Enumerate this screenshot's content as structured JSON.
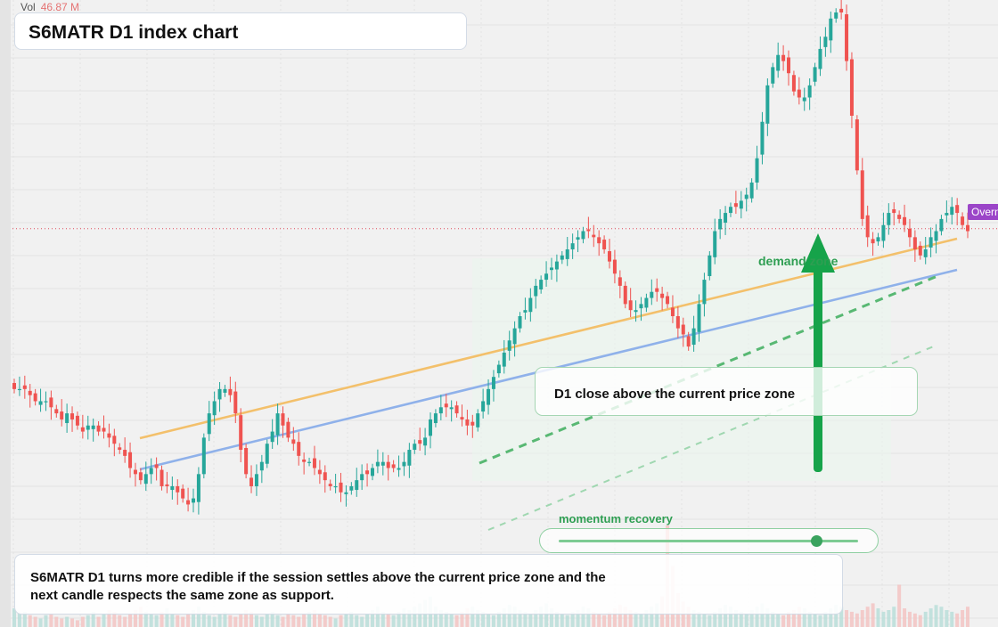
{
  "header": {
    "title": "S6MATR D1 index chart",
    "vol_label": "Vol",
    "vol_value": "46.87 M"
  },
  "annotations": {
    "callout": "D1 close above the current price zone",
    "demand_label": "demand zone",
    "momentum_label": "momentum recovery",
    "momentum_level": 0.86,
    "summary": "S6MATR D1 turns more credible if the session settles above the current price zone and the next candle respects the same zone as support.",
    "price_tag": "Overnight"
  },
  "colors": {
    "up": "#26a69a",
    "down": "#ef5350",
    "trend_orange": "#f3c06b",
    "trend_blue": "#8fb1ea",
    "support_green": "#58b873",
    "arrow": "#16a34a",
    "price_line": "#e04b5a",
    "price_tag": "#9b45c8"
  },
  "chart_data": {
    "type": "candlestick",
    "ylim": [
      0,
      100
    ],
    "current_price": 64.4,
    "seed_close": [
      38,
      38,
      38,
      37,
      36,
      36,
      36,
      35,
      34,
      33,
      34,
      33,
      32,
      31,
      32,
      32,
      31,
      31,
      30,
      29,
      28,
      27,
      25,
      24,
      23,
      24,
      25,
      25,
      22,
      22,
      22,
      21,
      20,
      19,
      20,
      24,
      30,
      34,
      36,
      38,
      38,
      37,
      34,
      28,
      24,
      22,
      24,
      26,
      29,
      31,
      34,
      32,
      30,
      29,
      27,
      26,
      26,
      25,
      24,
      23,
      22,
      22,
      21,
      21,
      22,
      23,
      24,
      24,
      25,
      26,
      26,
      25,
      25,
      25,
      26,
      28,
      29,
      29,
      30,
      33,
      34,
      35,
      35,
      35,
      34,
      33,
      32,
      32,
      34,
      36,
      38,
      40,
      42,
      44,
      46,
      48,
      50,
      51,
      53,
      55,
      56,
      57,
      58,
      59,
      60,
      61,
      62,
      63,
      64,
      64,
      63,
      62,
      61,
      59,
      57,
      55,
      52,
      51,
      51,
      52,
      53,
      54,
      54,
      53,
      52,
      50,
      48,
      47,
      45,
      48,
      52,
      56,
      60,
      64,
      66,
      67,
      68,
      68,
      69,
      70,
      72,
      76,
      82,
      88,
      91,
      93,
      92,
      90,
      87,
      86,
      86,
      88,
      91,
      94,
      96,
      99,
      100,
      100,
      92,
      83,
      74,
      66,
      63,
      62,
      63,
      65,
      67,
      67,
      66,
      65,
      63,
      61,
      60,
      61,
      63,
      64,
      66,
      67,
      68,
      67,
      65,
      64
    ],
    "volume": [
      11,
      8,
      9,
      7,
      6,
      5,
      7,
      8,
      6,
      5,
      6,
      5,
      4,
      6,
      7,
      9,
      6,
      8,
      10,
      9,
      7,
      6,
      8,
      10,
      12,
      9,
      8,
      7,
      9,
      11,
      8,
      7,
      6,
      8,
      10,
      12,
      9,
      7,
      6,
      8,
      9,
      7,
      6,
      8,
      10,
      9,
      7,
      6,
      8,
      9,
      7,
      6,
      8,
      7,
      6,
      8,
      9,
      10,
      8,
      7,
      6,
      5,
      7,
      8,
      9,
      7,
      6,
      8,
      10,
      12,
      9,
      8,
      7,
      9,
      11,
      10,
      12,
      14,
      16,
      18,
      12,
      10,
      9,
      8,
      7,
      9,
      11,
      12,
      10,
      9,
      8,
      7,
      9,
      11,
      13,
      12,
      10,
      9,
      8,
      10,
      12,
      14,
      11,
      9,
      8,
      7,
      9,
      10,
      12,
      11,
      9,
      8,
      7,
      9,
      11,
      13,
      12,
      10,
      9,
      8,
      10,
      12,
      14,
      18,
      60,
      36,
      20,
      15,
      12,
      10,
      9,
      8,
      7,
      9,
      11,
      13,
      12,
      10,
      9,
      8,
      10,
      12,
      14,
      11,
      9,
      8,
      7,
      9,
      10,
      12,
      11,
      9,
      8,
      7,
      9,
      11,
      13,
      12,
      10,
      9,
      8,
      10,
      12,
      14,
      11,
      9,
      10,
      12,
      25,
      11,
      9,
      8,
      7,
      9,
      11,
      13,
      12,
      10,
      9,
      8,
      10,
      12
    ]
  }
}
